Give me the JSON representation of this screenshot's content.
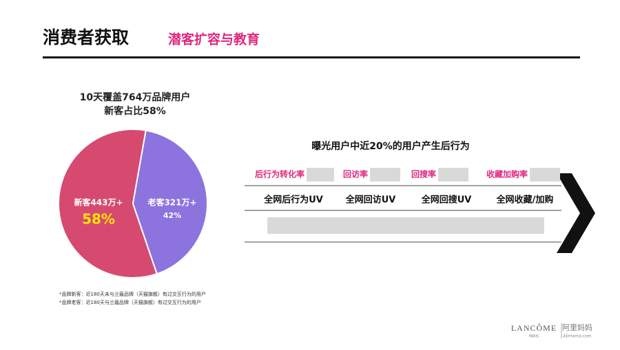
{
  "header": {
    "title": "消费者获取",
    "subtitle": "潜客扩容与教育"
  },
  "chart_data": {
    "type": "pie",
    "title": "10天覆盖764万品牌用户",
    "subtitle": "新客占比58%",
    "categories": [
      "新客443万+",
      "老客321万+"
    ],
    "values": [
      58,
      42
    ],
    "value_labels": [
      "58%",
      "42%"
    ],
    "colors": [
      "#d64a70",
      "#8c73de"
    ],
    "notes": [
      "*品牌新客：近180天未与兰蔻品牌（天猫旗舰）有过交互行为的用户",
      "*品牌老客：近180天与兰蔻品牌（天猫旗舰）有过交互行为的用户"
    ]
  },
  "flow": {
    "title": "曝光用户中近20%的用户产生后行为",
    "metrics": [
      "后行为转化率",
      "回访率",
      "回搜率",
      "收藏加购率"
    ],
    "steps": [
      "全网后行为UV",
      "全网回访UV",
      "全网回搜UV",
      "全网收藏/加购"
    ]
  },
  "footer": {
    "brand": "LANCÔME",
    "brand_sub": "PARIS",
    "partner": "阿里妈妈",
    "partner_sub": "Alimama.com"
  }
}
